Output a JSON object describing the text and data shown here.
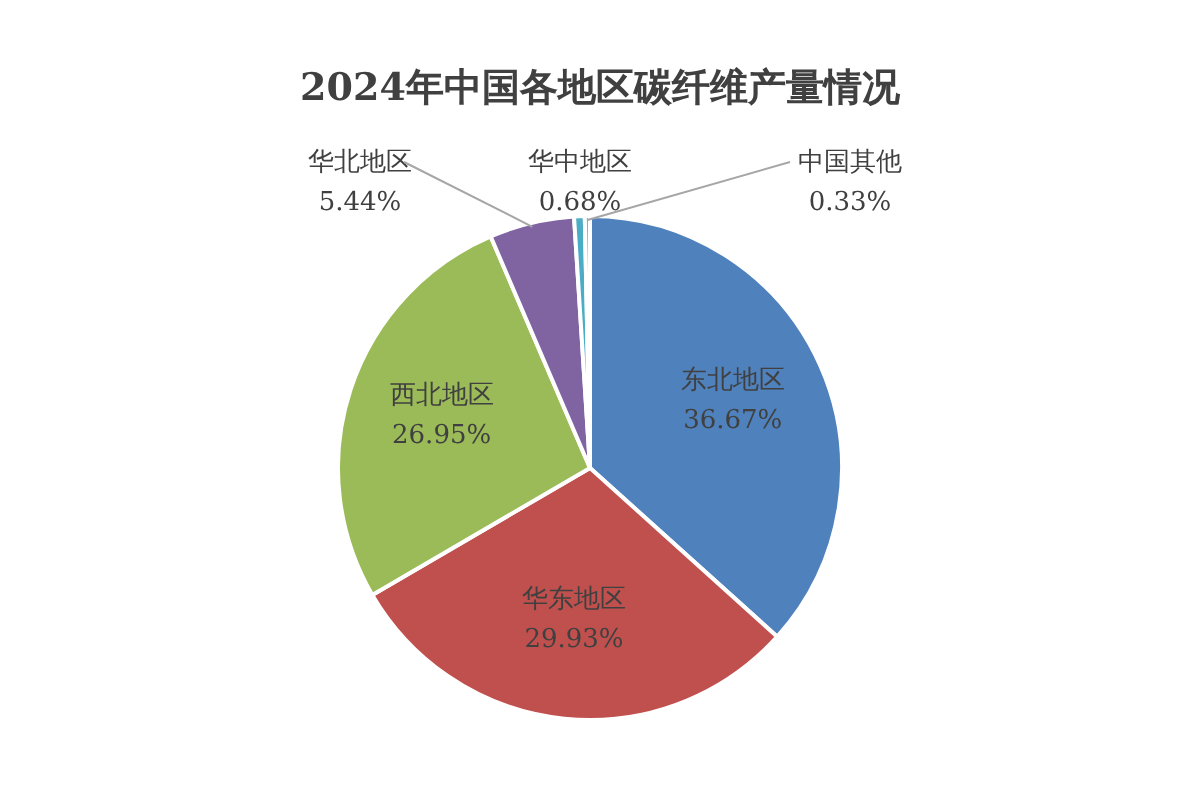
{
  "chart_data": {
    "type": "pie",
    "title": "2024年中国各地区碳纤维产量情况",
    "categories": [
      "东北地区",
      "华东地区",
      "西北地区",
      "华北地区",
      "华中地区",
      "中国其他"
    ],
    "values": [
      36.67,
      29.93,
      26.95,
      5.44,
      0.68,
      0.33
    ],
    "colors": [
      "#4f81bd",
      "#c0504d",
      "#9bbb59",
      "#8064a2",
      "#4bacc6",
      "#7fb2d9"
    ],
    "value_labels": [
      "36.67%",
      "29.93%",
      "26.95%",
      "5.44%",
      "0.68%",
      "0.33%"
    ]
  }
}
